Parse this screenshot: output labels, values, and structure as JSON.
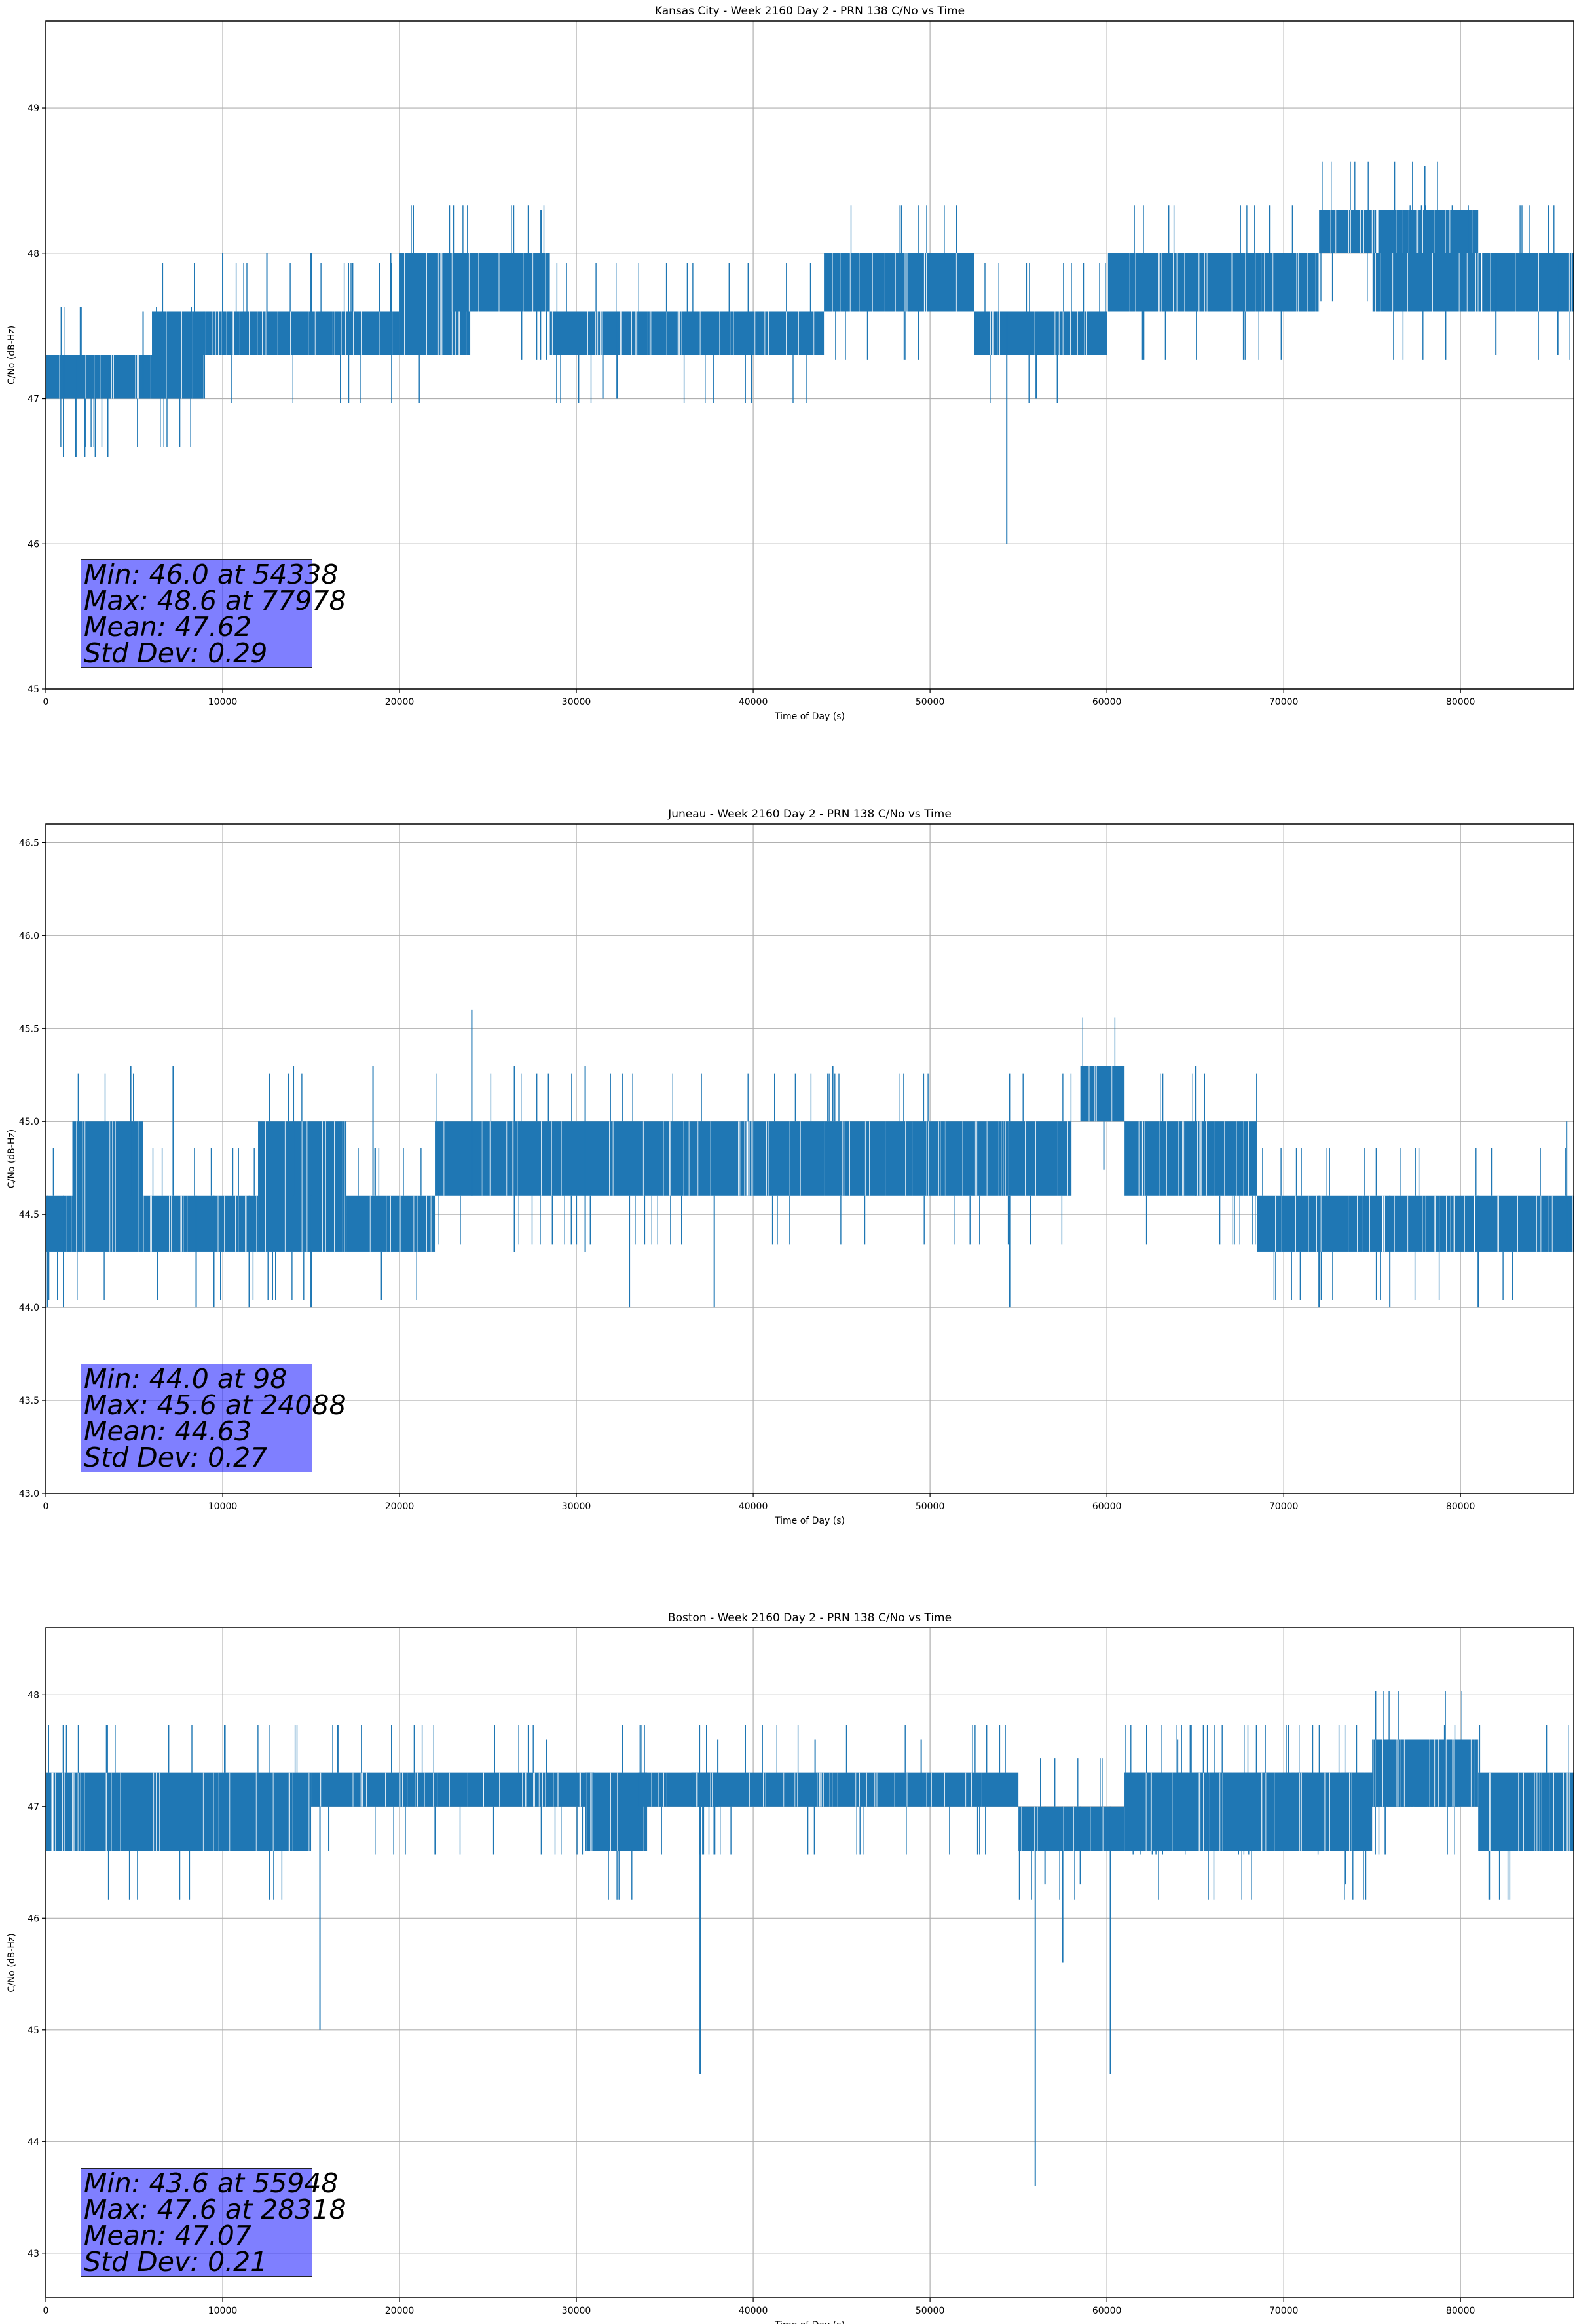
{
  "chart_data": [
    {
      "type": "line",
      "title": "Kansas City - Week 2160 Day 2 - PRN 138 C/No vs Time",
      "xlabel": "Time of Day (s)",
      "ylabel": "C/No (dB-Hz)",
      "xlim": [
        0,
        86400
      ],
      "ylim": [
        45,
        49.6
      ],
      "xticks": [
        0,
        10000,
        20000,
        30000,
        40000,
        50000,
        60000,
        70000,
        80000
      ],
      "yticks": [
        45,
        46,
        47,
        48,
        49
      ],
      "ytick_labels": [
        "45",
        "46",
        "47",
        "48",
        "49"
      ],
      "grid": true,
      "series_color": "#1f77b4",
      "stats": [
        "Min: 46.0 at 54338",
        "Max: 48.6 at 77978",
        "Mean: 47.62",
        "Std Dev: 0.29"
      ],
      "bands": [
        {
          "x": [
            0,
            8900
          ],
          "low": 47.0,
          "high": 47.3
        },
        {
          "x": [
            6000,
            9000
          ],
          "low": 47.0,
          "high": 47.6
        },
        {
          "x": [
            8900,
            20000
          ],
          "low": 47.3,
          "high": 47.6
        },
        {
          "x": [
            20000,
            24000
          ],
          "low": 47.3,
          "high": 48.0
        },
        {
          "x": [
            22500,
            28500
          ],
          "low": 47.6,
          "high": 48.0
        },
        {
          "x": [
            28500,
            34000
          ],
          "low": 47.3,
          "high": 47.6
        },
        {
          "x": [
            34000,
            44000
          ],
          "low": 47.3,
          "high": 47.6
        },
        {
          "x": [
            44000,
            52500
          ],
          "low": 47.6,
          "high": 48.0
        },
        {
          "x": [
            52500,
            60000
          ],
          "low": 47.3,
          "high": 47.6
        },
        {
          "x": [
            60000,
            72000
          ],
          "low": 47.6,
          "high": 48.0
        },
        {
          "x": [
            72000,
            81000
          ],
          "low": 48.0,
          "high": 48.3
        },
        {
          "x": [
            75000,
            86400
          ],
          "low": 47.6,
          "high": 48.0
        }
      ],
      "spikes": [
        {
          "x": 1000,
          "low": 46.6,
          "high": 47.3
        },
        {
          "x": 1700,
          "low": 46.6,
          "high": 47.3
        },
        {
          "x": 2200,
          "low": 46.6,
          "high": 47.3
        },
        {
          "x": 2800,
          "low": 46.6,
          "high": 47.3
        },
        {
          "x": 3500,
          "low": 46.6,
          "high": 47.3
        },
        {
          "x": 5500,
          "low": 47.0,
          "high": 47.6
        },
        {
          "x": 10000,
          "low": 47.3,
          "high": 48.0
        },
        {
          "x": 12500,
          "low": 47.3,
          "high": 48.0
        },
        {
          "x": 15000,
          "low": 47.3,
          "high": 48.0
        },
        {
          "x": 19500,
          "low": 47.3,
          "high": 48.0
        },
        {
          "x": 28000,
          "low": 47.6,
          "high": 48.3
        },
        {
          "x": 31500,
          "low": 47.0,
          "high": 47.6
        },
        {
          "x": 32300,
          "low": 47.0,
          "high": 47.6
        },
        {
          "x": 54338,
          "low": 46.0,
          "high": 47.6
        },
        {
          "x": 56000,
          "low": 47.0,
          "high": 47.6
        },
        {
          "x": 77978,
          "low": 48.0,
          "high": 48.6
        },
        {
          "x": 82000,
          "low": 47.3,
          "high": 48.0
        },
        {
          "x": 85500,
          "low": 47.3,
          "high": 48.0
        }
      ]
    },
    {
      "type": "line",
      "title": "Juneau - Week 2160 Day 2 - PRN 138 C/No vs Time",
      "xlabel": "Time of Day (s)",
      "ylabel": "C/No (dB-Hz)",
      "xlim": [
        0,
        86400
      ],
      "ylim": [
        43.0,
        46.6
      ],
      "xticks": [
        0,
        10000,
        20000,
        30000,
        40000,
        50000,
        60000,
        70000,
        80000
      ],
      "yticks": [
        43.0,
        43.5,
        44.0,
        44.5,
        45.0,
        45.5,
        46.0,
        46.5
      ],
      "ytick_labels": [
        "43.0",
        "43.5",
        "44.0",
        "44.5",
        "45.0",
        "45.5",
        "46.0",
        "46.5"
      ],
      "grid": true,
      "series_color": "#1f77b4",
      "stats": [
        "Min: 44.0 at 98",
        "Max: 45.6 at 24088",
        "Mean: 44.63",
        "Std Dev: 0.27"
      ],
      "bands": [
        {
          "x": [
            0,
            1500
          ],
          "low": 44.3,
          "high": 44.6
        },
        {
          "x": [
            1500,
            5500
          ],
          "low": 44.3,
          "high": 45.0
        },
        {
          "x": [
            5500,
            12000
          ],
          "low": 44.3,
          "high": 44.6
        },
        {
          "x": [
            12000,
            17000
          ],
          "low": 44.3,
          "high": 45.0
        },
        {
          "x": [
            17000,
            22000
          ],
          "low": 44.3,
          "high": 44.6
        },
        {
          "x": [
            22000,
            29000
          ],
          "low": 44.6,
          "high": 45.0
        },
        {
          "x": [
            29000,
            40000
          ],
          "low": 44.6,
          "high": 45.0
        },
        {
          "x": [
            40000,
            44000
          ],
          "low": 44.6,
          "high": 45.0
        },
        {
          "x": [
            44000,
            49000
          ],
          "low": 44.6,
          "high": 45.0
        },
        {
          "x": [
            49000,
            58000
          ],
          "low": 44.6,
          "high": 45.0
        },
        {
          "x": [
            58500,
            61000
          ],
          "low": 45.0,
          "high": 45.3
        },
        {
          "x": [
            61000,
            68500
          ],
          "low": 44.6,
          "high": 45.0
        },
        {
          "x": [
            68500,
            86400
          ],
          "low": 44.3,
          "high": 44.6
        }
      ],
      "spikes": [
        {
          "x": 98,
          "low": 44.0,
          "high": 44.6
        },
        {
          "x": 1000,
          "low": 44.0,
          "high": 44.6
        },
        {
          "x": 4800,
          "low": 44.6,
          "high": 45.3
        },
        {
          "x": 7200,
          "low": 44.6,
          "high": 45.3
        },
        {
          "x": 8500,
          "low": 44.0,
          "high": 44.6
        },
        {
          "x": 9500,
          "low": 44.0,
          "high": 44.6
        },
        {
          "x": 11500,
          "low": 44.0,
          "high": 44.6
        },
        {
          "x": 14000,
          "low": 44.6,
          "high": 45.3
        },
        {
          "x": 15000,
          "low": 44.0,
          "high": 44.6
        },
        {
          "x": 18500,
          "low": 44.6,
          "high": 45.3
        },
        {
          "x": 24088,
          "low": 44.6,
          "high": 45.6
        },
        {
          "x": 26500,
          "low": 44.3,
          "high": 45.3
        },
        {
          "x": 30500,
          "low": 44.3,
          "high": 45.3
        },
        {
          "x": 33000,
          "low": 44.0,
          "high": 44.6
        },
        {
          "x": 37800,
          "low": 44.0,
          "high": 44.6
        },
        {
          "x": 44500,
          "low": 45.0,
          "high": 45.3
        },
        {
          "x": 54500,
          "low": 44.0,
          "high": 44.6
        },
        {
          "x": 65000,
          "low": 44.6,
          "high": 45.3
        },
        {
          "x": 72000,
          "low": 44.0,
          "high": 44.6
        },
        {
          "x": 76000,
          "low": 44.0,
          "high": 44.6
        },
        {
          "x": 81000,
          "low": 44.0,
          "high": 44.6
        },
        {
          "x": 86000,
          "low": 44.3,
          "high": 45.0
        }
      ]
    },
    {
      "type": "line",
      "title": "Boston - Week 2160 Day 2 - PRN 138 C/No vs Time",
      "xlabel": "Time of Day (s)",
      "ylabel": "C/No (dB-Hz)",
      "xlim": [
        0,
        86400
      ],
      "ylim": [
        42.6,
        48.6
      ],
      "xticks": [
        0,
        10000,
        20000,
        30000,
        40000,
        50000,
        60000,
        70000,
        80000
      ],
      "yticks": [
        43,
        44,
        45,
        46,
        47,
        48
      ],
      "ytick_labels": [
        "43",
        "44",
        "45",
        "46",
        "47",
        "48"
      ],
      "grid": true,
      "series_color": "#1f77b4",
      "stats": [
        "Min: 43.6 at 55948",
        "Max: 47.6 at 28318",
        "Mean: 47.07",
        "Std Dev: 0.21"
      ],
      "bands": [
        {
          "x": [
            0,
            15000
          ],
          "low": 46.6,
          "high": 47.3
        },
        {
          "x": [
            15000,
            31000
          ],
          "low": 47.0,
          "high": 47.3
        },
        {
          "x": [
            30500,
            34000
          ],
          "low": 46.6,
          "high": 47.3
        },
        {
          "x": [
            33500,
            38000
          ],
          "low": 47.0,
          "high": 47.3
        },
        {
          "x": [
            36500,
            55000
          ],
          "low": 47.0,
          "high": 47.3
        },
        {
          "x": [
            55000,
            61000
          ],
          "low": 46.6,
          "high": 47.0
        },
        {
          "x": [
            61000,
            80000
          ],
          "low": 47.0,
          "high": 47.3
        },
        {
          "x": [
            61000,
            75000
          ],
          "low": 46.6,
          "high": 47.3
        },
        {
          "x": [
            75000,
            81000
          ],
          "low": 47.0,
          "high": 47.6
        },
        {
          "x": [
            81000,
            86400
          ],
          "low": 46.6,
          "high": 47.3
        }
      ],
      "spikes": [
        {
          "x": 15500,
          "low": 45.0,
          "high": 47.0
        },
        {
          "x": 16000,
          "low": 46.6,
          "high": 47.0
        },
        {
          "x": 28318,
          "low": 47.0,
          "high": 47.6
        },
        {
          "x": 37000,
          "low": 44.6,
          "high": 47.0
        },
        {
          "x": 38000,
          "low": 47.0,
          "high": 47.6
        },
        {
          "x": 43500,
          "low": 47.0,
          "high": 47.6
        },
        {
          "x": 49500,
          "low": 47.0,
          "high": 47.6
        },
        {
          "x": 55948,
          "low": 43.6,
          "high": 47.0
        },
        {
          "x": 56500,
          "low": 46.3,
          "high": 47.0
        },
        {
          "x": 57500,
          "low": 45.6,
          "high": 47.0
        },
        {
          "x": 58500,
          "low": 46.3,
          "high": 47.0
        },
        {
          "x": 60200,
          "low": 44.6,
          "high": 47.0
        },
        {
          "x": 64000,
          "low": 47.0,
          "high": 47.6
        },
        {
          "x": 73500,
          "low": 46.3,
          "high": 47.0
        }
      ]
    }
  ]
}
